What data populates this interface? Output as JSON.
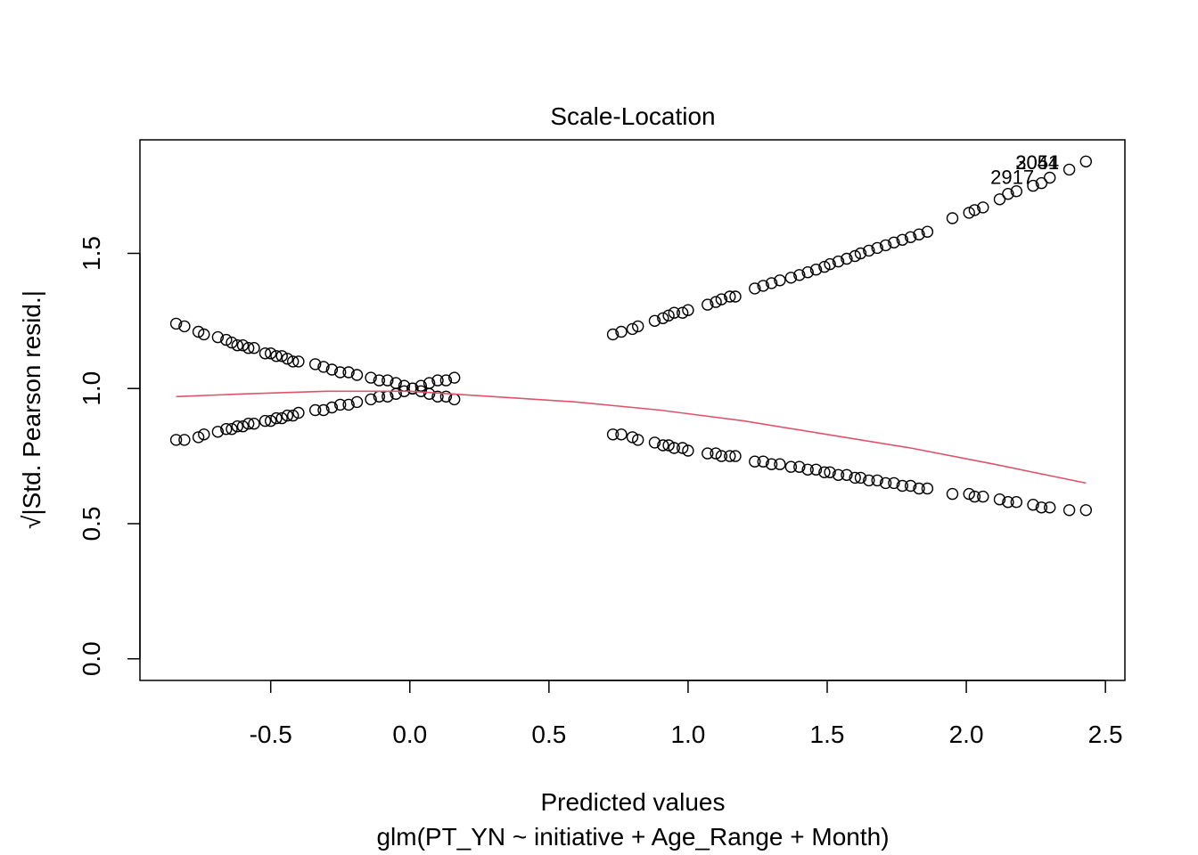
{
  "chart_data": {
    "type": "scatter",
    "title": "Scale-Location",
    "xlabel": "Predicted values",
    "subtitle": "glm(PT_YN ~ initiative + Age_Range + Month)",
    "ylabel": "√|Std. Pearson resid.|",
    "xlim": [
      -0.97,
      2.57
    ],
    "ylim": [
      -0.08,
      1.92
    ],
    "xticks": [
      -0.5,
      0.0,
      0.5,
      1.0,
      1.5,
      2.0,
      2.5
    ],
    "xtick_labels": [
      "-0.5",
      "0.0",
      "0.5",
      "1.0",
      "1.5",
      "2.0",
      "2.5"
    ],
    "yticks": [
      0.0,
      0.5,
      1.0,
      1.5
    ],
    "ytick_labels": [
      "0.0",
      "0.5",
      "1.0",
      "1.5"
    ],
    "grid": false,
    "point_color": "#000000",
    "smooth_color": "#DF536B",
    "series": [
      {
        "role": "points",
        "x": [
          -0.84,
          -0.81,
          -0.76,
          -0.74,
          -0.69,
          -0.66,
          -0.64,
          -0.62,
          -0.6,
          -0.58,
          -0.56,
          -0.52,
          -0.5,
          -0.48,
          -0.46,
          -0.44,
          -0.42,
          -0.4,
          -0.34,
          -0.31,
          -0.28,
          -0.25,
          -0.22,
          -0.19,
          -0.14,
          -0.11,
          -0.08,
          -0.05,
          -0.02,
          0.01,
          0.04,
          0.07,
          0.1,
          0.13,
          0.16,
          -0.84,
          -0.81,
          -0.76,
          -0.74,
          -0.69,
          -0.66,
          -0.64,
          -0.62,
          -0.6,
          -0.58,
          -0.56,
          -0.52,
          -0.5,
          -0.48,
          -0.46,
          -0.44,
          -0.42,
          -0.4,
          -0.34,
          -0.31,
          -0.28,
          -0.25,
          -0.22,
          -0.19,
          -0.14,
          -0.11,
          -0.08,
          -0.05,
          -0.02,
          0.01,
          0.04,
          0.07,
          0.1,
          0.13,
          0.16,
          0.73,
          0.76,
          0.8,
          0.82,
          0.88,
          0.91,
          0.93,
          0.95,
          0.98,
          1.0,
          1.07,
          1.1,
          1.12,
          1.15,
          1.17,
          1.24,
          1.27,
          1.3,
          1.33,
          1.37,
          1.4,
          1.43,
          1.46,
          1.49,
          1.51,
          1.54,
          1.57,
          1.6,
          1.62,
          1.65,
          1.68,
          1.71,
          1.74,
          1.77,
          1.8,
          1.83,
          1.86,
          1.95,
          2.01,
          2.03,
          2.06,
          2.12,
          2.15,
          2.18,
          2.24,
          2.27,
          2.3,
          2.37,
          2.43,
          0.73,
          0.76,
          0.8,
          0.82,
          0.88,
          0.91,
          0.93,
          0.95,
          0.98,
          1.0,
          1.07,
          1.1,
          1.12,
          1.15,
          1.17,
          1.24,
          1.27,
          1.3,
          1.33,
          1.37,
          1.4,
          1.43,
          1.46,
          1.49,
          1.51,
          1.54,
          1.57,
          1.6,
          1.62,
          1.65,
          1.68,
          1.71,
          1.74,
          1.77,
          1.8,
          1.83,
          1.86,
          1.95,
          2.01,
          2.03,
          2.06,
          2.12,
          2.15,
          2.18,
          2.24,
          2.27,
          2.3,
          2.37,
          2.43
        ],
        "y": [
          1.24,
          1.23,
          1.21,
          1.2,
          1.19,
          1.18,
          1.17,
          1.16,
          1.16,
          1.15,
          1.15,
          1.13,
          1.13,
          1.12,
          1.12,
          1.11,
          1.1,
          1.1,
          1.09,
          1.08,
          1.07,
          1.06,
          1.06,
          1.05,
          1.04,
          1.03,
          1.03,
          1.02,
          1.01,
          1.0,
          0.99,
          0.98,
          0.97,
          0.97,
          0.96,
          0.81,
          0.81,
          0.82,
          0.83,
          0.84,
          0.85,
          0.85,
          0.86,
          0.86,
          0.87,
          0.87,
          0.88,
          0.88,
          0.89,
          0.89,
          0.9,
          0.9,
          0.91,
          0.92,
          0.92,
          0.93,
          0.94,
          0.94,
          0.95,
          0.96,
          0.97,
          0.97,
          0.98,
          0.99,
          1.0,
          1.01,
          1.02,
          1.03,
          1.03,
          1.04,
          1.2,
          1.21,
          1.22,
          1.23,
          1.25,
          1.26,
          1.27,
          1.28,
          1.28,
          1.29,
          1.31,
          1.32,
          1.33,
          1.34,
          1.34,
          1.37,
          1.38,
          1.39,
          1.4,
          1.41,
          1.42,
          1.43,
          1.44,
          1.45,
          1.46,
          1.47,
          1.48,
          1.49,
          1.5,
          1.51,
          1.52,
          1.53,
          1.54,
          1.55,
          1.56,
          1.57,
          1.58,
          1.63,
          1.65,
          1.66,
          1.67,
          1.7,
          1.72,
          1.73,
          1.75,
          1.76,
          1.78,
          1.81,
          1.84,
          0.83,
          0.83,
          0.82,
          0.81,
          0.8,
          0.79,
          0.79,
          0.78,
          0.78,
          0.77,
          0.76,
          0.76,
          0.75,
          0.75,
          0.75,
          0.73,
          0.73,
          0.72,
          0.72,
          0.71,
          0.71,
          0.7,
          0.7,
          0.69,
          0.69,
          0.68,
          0.68,
          0.67,
          0.67,
          0.66,
          0.66,
          0.65,
          0.65,
          0.64,
          0.64,
          0.63,
          0.63,
          0.61,
          0.61,
          0.6,
          0.6,
          0.59,
          0.58,
          0.58,
          0.57,
          0.56,
          0.56,
          0.55,
          0.55
        ]
      },
      {
        "role": "smooth",
        "x": [
          -0.84,
          -0.6,
          -0.3,
          0.0,
          0.3,
          0.6,
          0.9,
          1.2,
          1.5,
          1.8,
          2.1,
          2.43
        ],
        "y": [
          0.97,
          0.98,
          0.99,
          0.99,
          0.97,
          0.95,
          0.92,
          0.88,
          0.83,
          0.78,
          0.72,
          0.65
        ]
      }
    ],
    "annotations": [
      {
        "text": "2917",
        "x": 2.165,
        "y": 1.78
      },
      {
        "text": "2054",
        "x": 2.255,
        "y": 1.835
      },
      {
        "text": "3041",
        "x": 2.255,
        "y": 1.835
      }
    ]
  }
}
